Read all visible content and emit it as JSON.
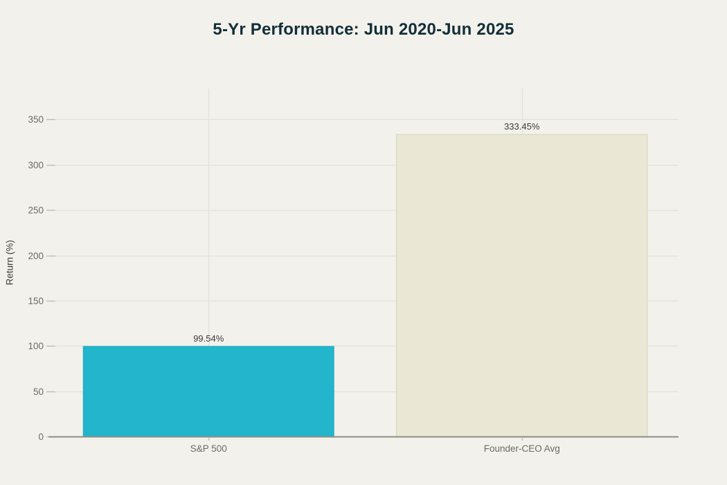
{
  "chart_data": {
    "type": "bar",
    "title": "5-Yr Performance: Jun 2020-Jun 2025",
    "ylabel": "Return (%)",
    "xlabel": "",
    "categories": [
      "S&P 500",
      "Founder-CEO Avg"
    ],
    "values": [
      99.54,
      333.45
    ],
    "value_labels": [
      "99.54%",
      "333.45%"
    ],
    "bar_colors": [
      "#22b5cb",
      "#eae8d4"
    ],
    "bar_border_colors": [
      "#1fadc2",
      "#d2d0bc"
    ],
    "ylim": [
      0,
      384
    ],
    "yticks": [
      0,
      50,
      100,
      150,
      200,
      250,
      300,
      350
    ],
    "grid": true,
    "legend_position": "none",
    "bar_gap_fraction": 0.2,
    "colors": {
      "background": "#f2f1ec",
      "title": "#132e38",
      "grid": "#e2e1db",
      "tick_mark": "#bcbab4",
      "axis_line": "#8e8d88",
      "tick_label": "#6b6a66",
      "category_label": "#6b6a66",
      "value_label": "#3b3a37",
      "axis_title": "#3d3c38"
    }
  }
}
